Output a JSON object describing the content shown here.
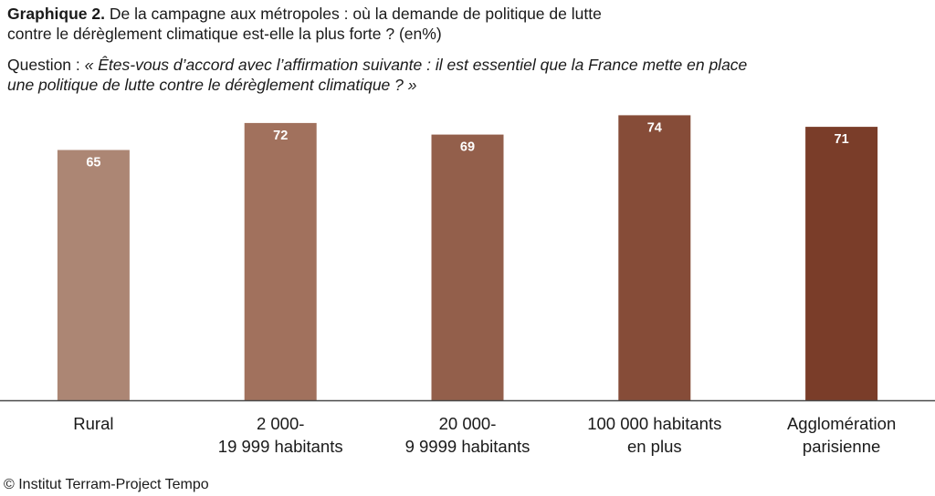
{
  "header": {
    "title_prefix": "Graphique 2.",
    "title_line1": "De la campagne aux métropoles : où la demande de politique de lutte",
    "title_line2": "contre le dérèglement climatique est-elle la plus forte ? (en%)",
    "question_prefix": "Question : ",
    "question_line1": "« Êtes-vous d’accord avec l’affirmation suivante : il est essentiel que la France mette en place",
    "question_line2": "une politique de lutte contre le dérèglement climatique ? »"
  },
  "footer": {
    "credit": "© Institut Terram-Project Tempo"
  },
  "chart_data": {
    "type": "bar",
    "title": "",
    "xlabel": "",
    "ylabel": "",
    "categories": [
      [
        "Rural"
      ],
      [
        "2 000-",
        "19 999 habitants"
      ],
      [
        "20 000-",
        "9 9999 habitants"
      ],
      [
        "100 000 habitants",
        "en plus"
      ],
      [
        "Agglomération",
        "parisienne"
      ]
    ],
    "values": [
      65,
      72,
      69,
      74,
      71
    ],
    "ylim": [
      0,
      76
    ],
    "grid": false,
    "legend": "none",
    "colors": [
      "#ac8674",
      "#a1715d",
      "#935f4b",
      "#864c38",
      "#7a3d29"
    ]
  }
}
